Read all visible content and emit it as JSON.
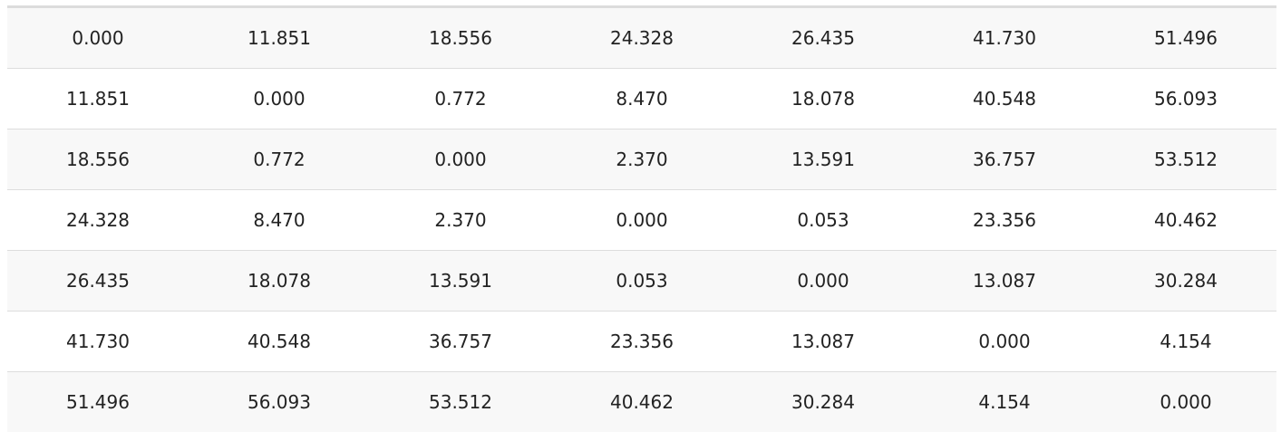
{
  "table": {
    "rows": [
      [
        "0.000",
        "11.851",
        "18.556",
        "24.328",
        "26.435",
        "41.730",
        "51.496"
      ],
      [
        "11.851",
        "0.000",
        "0.772",
        "8.470",
        "18.078",
        "40.548",
        "56.093"
      ],
      [
        "18.556",
        "0.772",
        "0.000",
        "2.370",
        "13.591",
        "36.757",
        "53.512"
      ],
      [
        "24.328",
        "8.470",
        "2.370",
        "0.000",
        "0.053",
        "23.356",
        "40.462"
      ],
      [
        "26.435",
        "18.078",
        "13.591",
        "0.053",
        "0.000",
        "13.087",
        "30.284"
      ],
      [
        "41.730",
        "40.548",
        "36.757",
        "23.356",
        "13.087",
        "0.000",
        "4.154"
      ],
      [
        "51.496",
        "56.093",
        "53.512",
        "40.462",
        "30.284",
        "4.154",
        "0.000"
      ]
    ]
  }
}
